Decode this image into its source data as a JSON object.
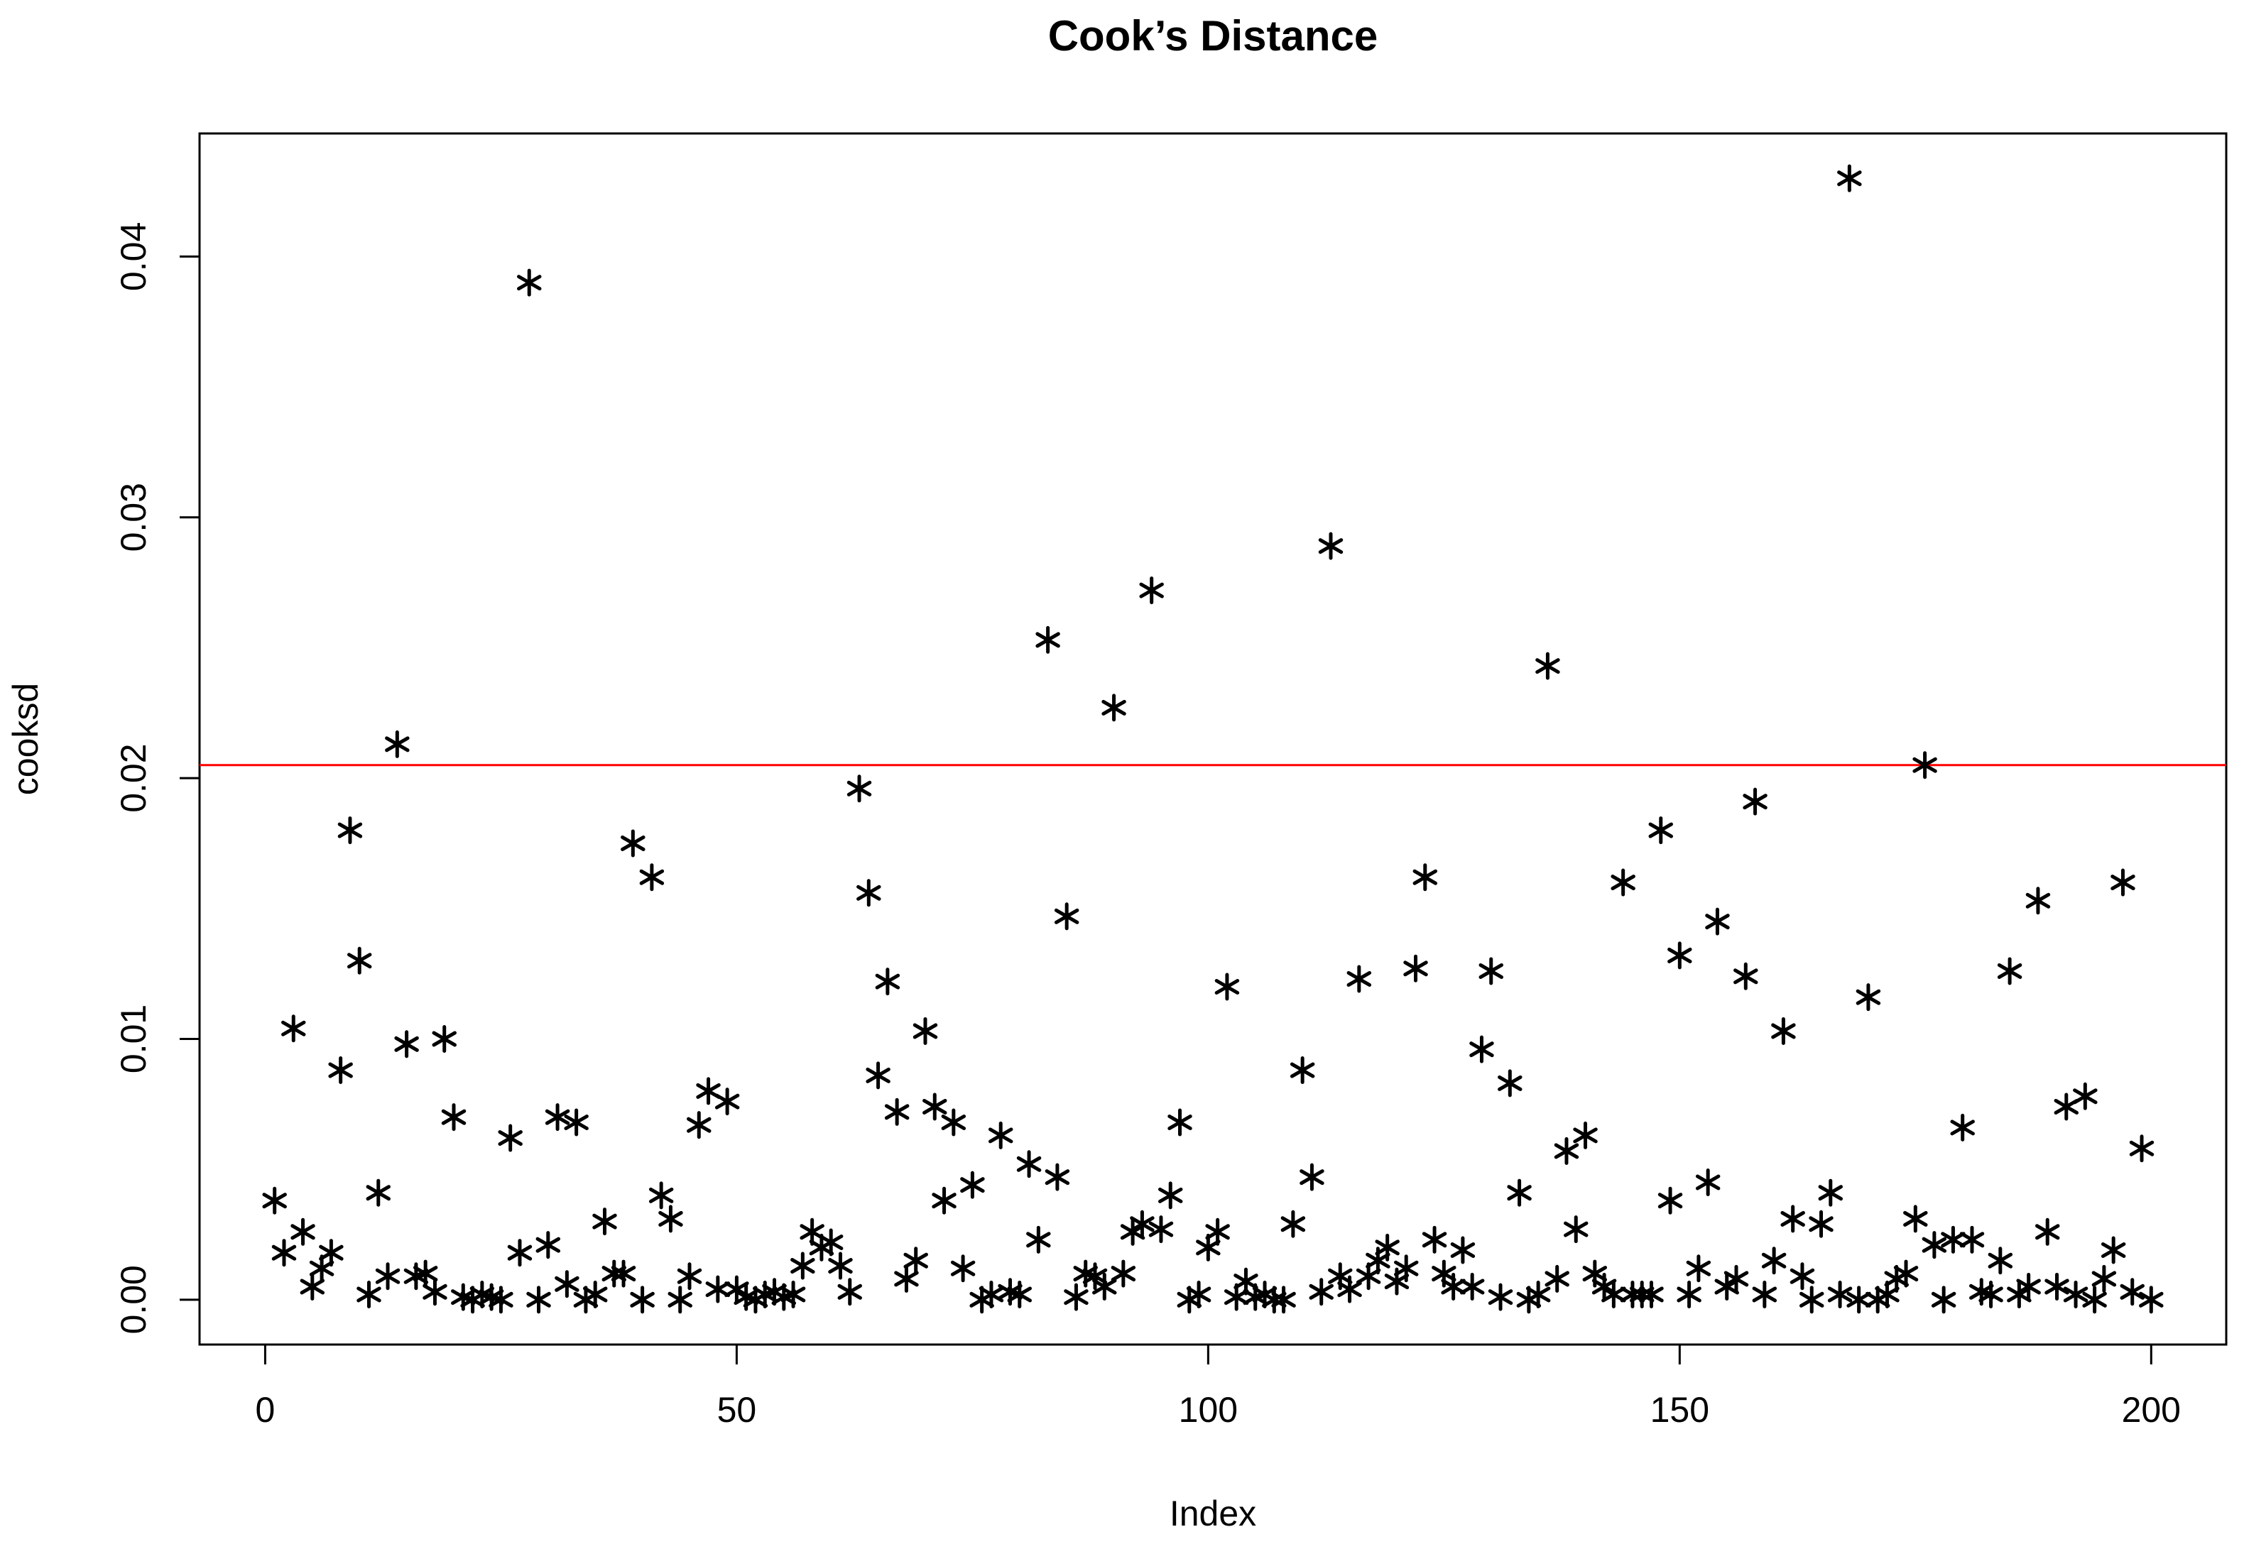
{
  "chart_data": {
    "type": "scatter",
    "title": "Cook’s Distance",
    "x_label": "Index",
    "y_label": "cooksd",
    "color": "#000000",
    "x": [
      1,
      2,
      3,
      4,
      5,
      6,
      7,
      8,
      9,
      10,
      11,
      12,
      13,
      14,
      15,
      16,
      17,
      18,
      19,
      20,
      21,
      22,
      23,
      24,
      25,
      26,
      27,
      28,
      29,
      30,
      31,
      32,
      33,
      34,
      35,
      36,
      37,
      38,
      39,
      40,
      41,
      42,
      43,
      44,
      45,
      46,
      47,
      48,
      49,
      50,
      51,
      52,
      53,
      54,
      55,
      56,
      57,
      58,
      59,
      60,
      61,
      62,
      63,
      64,
      65,
      66,
      67,
      68,
      69,
      70,
      71,
      72,
      73,
      74,
      75,
      76,
      77,
      78,
      79,
      80,
      81,
      82,
      83,
      84,
      85,
      86,
      87,
      88,
      89,
      90,
      91,
      92,
      93,
      94,
      95,
      96,
      97,
      98,
      99,
      100,
      101,
      102,
      103,
      104,
      105,
      106,
      107,
      108,
      109,
      110,
      111,
      112,
      113,
      114,
      115,
      116,
      117,
      118,
      119,
      120,
      121,
      122,
      123,
      124,
      125,
      126,
      127,
      128,
      129,
      130,
      131,
      132,
      133,
      134,
      135,
      136,
      137,
      138,
      139,
      140,
      141,
      142,
      143,
      144,
      145,
      146,
      147,
      148,
      149,
      150,
      151,
      152,
      153,
      154,
      155,
      156,
      157,
      158,
      159,
      160,
      161,
      162,
      163,
      164,
      165,
      166,
      167,
      168,
      169,
      170,
      171,
      172,
      173,
      174,
      175,
      176,
      177,
      178,
      179,
      180,
      181,
      182,
      183,
      184,
      185,
      186,
      187,
      188,
      189,
      190,
      191,
      192,
      193,
      194,
      195,
      196,
      197,
      198,
      199,
      200
    ],
    "values": [
      0.0038,
      0.0018,
      0.0104,
      0.0026,
      0.0005,
      0.0012,
      0.0018,
      0.0088,
      0.018,
      0.013,
      0.0002,
      0.0041,
      0.0009,
      0.0213,
      0.0098,
      0.0009,
      0.001,
      0.0003,
      0.01,
      0.007,
      0.0001,
      0,
      0.0002,
      0.0001,
      0,
      0.0062,
      0.0018,
      0.039,
      0,
      0.0021,
      0.007,
      0.0006,
      0.0068,
      0,
      0.0002,
      0.003,
      0.001,
      0.001,
      0.0175,
      0,
      0.0162,
      0.004,
      0.0031,
      0,
      0.0009,
      0.0067,
      0.008,
      0.0004,
      0.0076,
      0.0004,
      0.0001,
      0,
      0.0002,
      0.0003,
      0.0001,
      0.0002,
      0.0013,
      0.0026,
      0.002,
      0.0022,
      0.0013,
      0.0003,
      0.0196,
      0.0156,
      0.0086,
      0.0122,
      0.0072,
      0.0008,
      0.0015,
      0.0103,
      0.0074,
      0.0038,
      0.0068,
      0.0012,
      0.0044,
      0,
      0.0002,
      0.0063,
      0.0003,
      0.0002,
      0.0052,
      0.0023,
      0.0253,
      0.0047,
      0.0147,
      0.0001,
      0.001,
      0.0009,
      0.0005,
      0.0227,
      0.001,
      0.0026,
      0.0029,
      0.0272,
      0.0027,
      0.004,
      0.0068,
      0,
      0.0002,
      0.002,
      0.0026,
      0.012,
      0.0001,
      0.0007,
      0.0001,
      0.0002,
      0,
      0,
      0.0029,
      0.0088,
      0.0047,
      0.0003,
      0.0289,
      0.0009,
      0.0004,
      0.0123,
      0.0009,
      0.0015,
      0.002,
      0.0007,
      0.0012,
      0.0127,
      0.0162,
      0.0023,
      0.001,
      0.0005,
      0.0019,
      0.0005,
      0.0096,
      0.0126,
      0.0001,
      0.0083,
      0.0041,
      0,
      0.0002,
      0.0243,
      0.0008,
      0.0057,
      0.0027,
      0.0063,
      0.001,
      0.0005,
      0.0002,
      0.016,
      0.0002,
      0.0002,
      0.0002,
      0.018,
      0.0038,
      0.0132,
      0.0002,
      0.0012,
      0.0045,
      0.0145,
      0.0005,
      0.0008,
      0.0124,
      0.0191,
      0.0002,
      0.0015,
      0.0103,
      0.0031,
      0.0009,
      0,
      0.0029,
      0.0041,
      0.0002,
      0.043,
      0,
      0.0116,
      0,
      0.0002,
      0.0008,
      0.001,
      0.0031,
      0.0205,
      0.0021,
      0,
      0.0023,
      0.0066,
      0.0023,
      0.0003,
      0.0002,
      0.0015,
      0.0126,
      0.0002,
      0.0005,
      0.0153,
      0.0026,
      0.0005,
      0.0074,
      0.0002,
      0.0078,
      0,
      0.0008,
      0.0019,
      0.016,
      0.0003,
      0.0058,
      0
    ],
    "hline": {
      "value": 0.0205,
      "color": "#ff0000"
    },
    "xlim": [
      -6.96,
      207.96
    ],
    "ylim": [
      -0.00172,
      0.04472
    ],
    "xticks": [
      0,
      50,
      100,
      150,
      200
    ],
    "yticks": [
      {
        "value": 0,
        "label": "0.00"
      },
      {
        "value": 0.01,
        "label": "0.01"
      },
      {
        "value": 0.02,
        "label": "0.02"
      },
      {
        "value": 0.03,
        "label": "0.03"
      },
      {
        "value": 0.04,
        "label": "0.04"
      }
    ]
  }
}
